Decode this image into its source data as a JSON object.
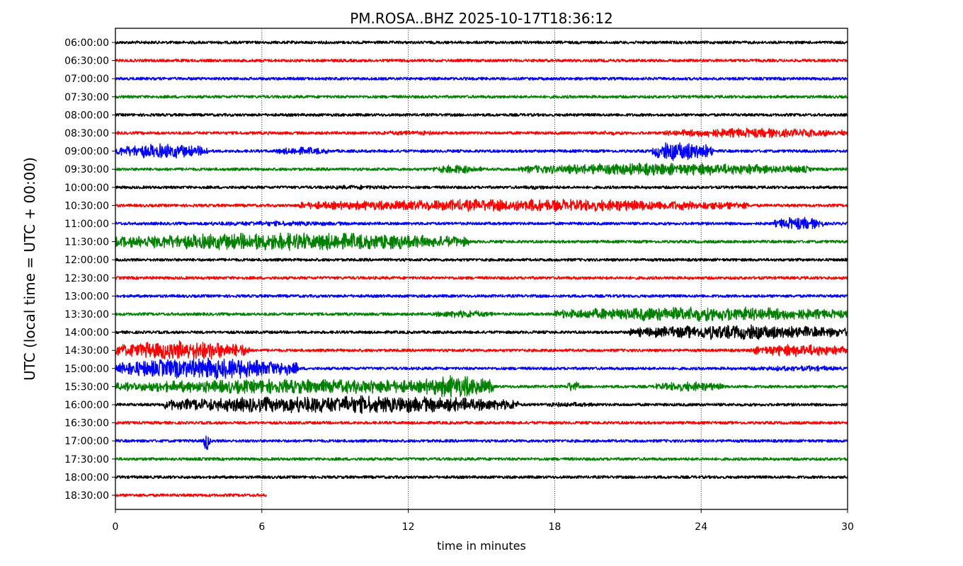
{
  "chart_data": {
    "type": "line",
    "title": "PM.ROSA..BHZ 2025-10-17T18:36:12",
    "xlabel": "time in minutes",
    "ylabel": "UTC (local time = UTC + 00:00)",
    "xlim": [
      0,
      30
    ],
    "x_ticks": [
      "0",
      "6",
      "12",
      "18",
      "24",
      "30"
    ],
    "x_tick_values": [
      0,
      6,
      12,
      18,
      24,
      30
    ],
    "grid": "vertical dotted lines at x ticks",
    "color_cycle": [
      "#000000",
      "#ff0000",
      "#0000ff",
      "#008000"
    ],
    "rows": [
      {
        "label": "06:00:00",
        "end_min": 30,
        "events": []
      },
      {
        "label": "06:30:00",
        "end_min": 30,
        "events": []
      },
      {
        "label": "07:00:00",
        "end_min": 30,
        "events": []
      },
      {
        "label": "07:30:00",
        "end_min": 30,
        "events": []
      },
      {
        "label": "08:00:00",
        "end_min": 30,
        "events": []
      },
      {
        "label": "08:30:00",
        "end_min": 30,
        "events": [
          [
            10.5,
            13.5,
            1.6
          ],
          [
            19.5,
            21,
            1.3
          ],
          [
            22.5,
            30,
            3.0
          ]
        ]
      },
      {
        "label": "09:00:00",
        "end_min": 30,
        "events": [
          [
            0,
            3.8,
            4.5
          ],
          [
            6.5,
            8.8,
            2.5
          ],
          [
            22,
            24.5,
            6.0
          ]
        ]
      },
      {
        "label": "09:30:00",
        "end_min": 30,
        "events": [
          [
            13,
            15,
            2.8
          ],
          [
            16.5,
            28.5,
            3.8
          ]
        ]
      },
      {
        "label": "10:00:00",
        "end_min": 30,
        "events": [
          [
            8,
            12,
            1.4
          ],
          [
            16.5,
            18,
            1.4
          ]
        ]
      },
      {
        "label": "10:30:00",
        "end_min": 30,
        "events": [
          [
            7.5,
            26,
            3.8
          ]
        ]
      },
      {
        "label": "11:00:00",
        "end_min": 30,
        "events": [
          [
            3,
            10,
            1.6
          ],
          [
            27,
            29,
            4.0
          ]
        ]
      },
      {
        "label": "11:30:00",
        "end_min": 30,
        "events": [
          [
            0,
            14.5,
            5.5
          ]
        ]
      },
      {
        "label": "12:00:00",
        "end_min": 30,
        "events": []
      },
      {
        "label": "12:30:00",
        "end_min": 30,
        "events": []
      },
      {
        "label": "13:00:00",
        "end_min": 30,
        "events": []
      },
      {
        "label": "13:30:00",
        "end_min": 30,
        "events": [
          [
            13,
            15.5,
            2.5
          ],
          [
            18,
            30,
            4.5
          ]
        ]
      },
      {
        "label": "14:00:00",
        "end_min": 30,
        "events": [
          [
            21,
            30,
            4.5
          ]
        ]
      },
      {
        "label": "14:30:00",
        "end_min": 30,
        "events": [
          [
            0,
            5.5,
            6.0
          ],
          [
            26,
            30,
            3.8
          ]
        ]
      },
      {
        "label": "15:00:00",
        "end_min": 30,
        "events": [
          [
            0,
            7.5,
            6.5
          ],
          [
            26,
            30,
            1.8
          ]
        ]
      },
      {
        "label": "15:30:00",
        "end_min": 30,
        "events": [
          [
            0,
            15.5,
            4.5
          ],
          [
            12.5,
            15.5,
            7.0
          ],
          [
            18.5,
            19,
            3.5
          ],
          [
            22,
            25,
            3.0
          ]
        ]
      },
      {
        "label": "16:00:00",
        "end_min": 30,
        "events": [
          [
            2,
            16.5,
            5.5
          ],
          [
            17,
            20,
            1.5
          ]
        ]
      },
      {
        "label": "16:30:00",
        "end_min": 30,
        "events": []
      },
      {
        "label": "17:00:00",
        "end_min": 30,
        "events": [
          [
            3.6,
            3.9,
            6.0
          ]
        ]
      },
      {
        "label": "17:30:00",
        "end_min": 30,
        "events": []
      },
      {
        "label": "18:00:00",
        "end_min": 30,
        "events": []
      },
      {
        "label": "18:30:00",
        "end_min": 6.2,
        "events": []
      }
    ]
  }
}
